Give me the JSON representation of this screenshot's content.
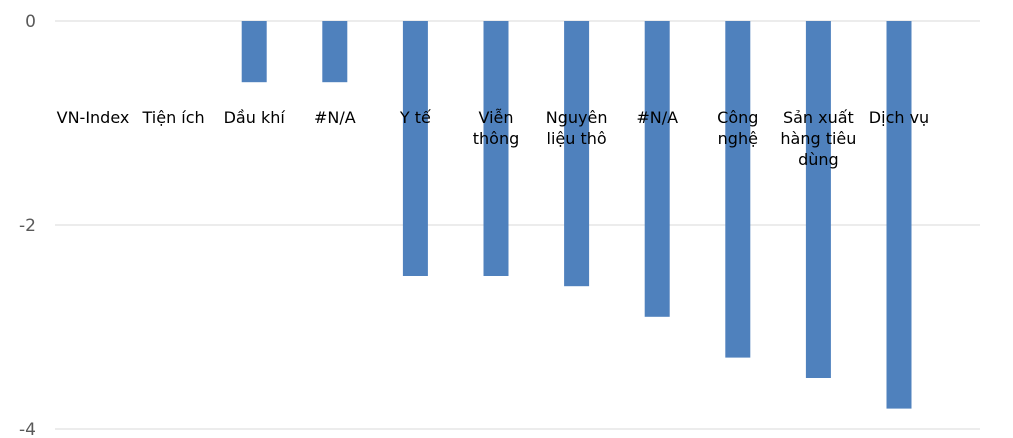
{
  "colors": {
    "bar": "#4f81bd",
    "grid": "#d9d9d9",
    "tick_text": "#595959",
    "label_text": "#000000"
  },
  "chart_data": {
    "type": "bar",
    "categories": [
      "VN-Index",
      "Tiện ích",
      "Dầu khí",
      "#N/A",
      "Y tế",
      "Viễn thông",
      "Nguyên liệu thô",
      "#N/A",
      "Công nghệ",
      "Sản xuất hàng tiêu dùng",
      "Dịch vụ"
    ],
    "category_lines": [
      [
        "VN-Index"
      ],
      [
        "Tiện ích"
      ],
      [
        "Dầu khí"
      ],
      [
        "#N/A"
      ],
      [
        "Y tế"
      ],
      [
        "Viễn",
        "thông"
      ],
      [
        "Nguyên",
        "liệu thô"
      ],
      [
        "#N/A"
      ],
      [
        "Công",
        "nghệ"
      ],
      [
        "Sản xuất",
        "hàng tiêu",
        "dùng"
      ],
      [
        "Dịch vụ"
      ]
    ],
    "values": [
      0,
      0,
      -0.6,
      -0.6,
      -2.5,
      -2.5,
      -2.6,
      -2.9,
      -3.3,
      -3.5,
      -3.8
    ],
    "ylim": [
      -4,
      0
    ],
    "yticks": [
      0,
      -2,
      -4
    ],
    "ytick_labels": [
      "0",
      "-2",
      "-4"
    ],
    "grid": true,
    "title": "",
    "xlabel": "",
    "ylabel": ""
  }
}
